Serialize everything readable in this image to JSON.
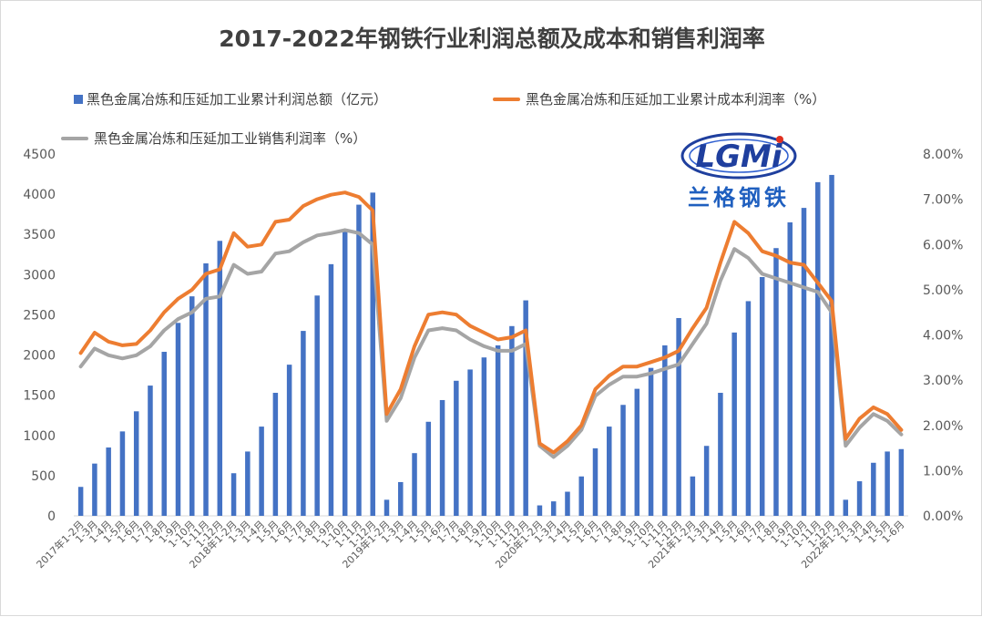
{
  "chart_data": {
    "type": "bar+line",
    "title": "2017-2022年钢铁行业利润总额及成本和销售利润率",
    "categories": [
      "2017年1-2月",
      "1-3月",
      "1-4月",
      "1-5月",
      "1-6月",
      "1-7月",
      "1-8月",
      "1-9月",
      "1-10月",
      "1-11月",
      "1-12月",
      "2018年1-2月",
      "1-3月",
      "1-4月",
      "1-5月",
      "1-6月",
      "1-7月",
      "1-8月",
      "1-9月",
      "1-10月",
      "1-11月",
      "1-12月",
      "2019年1-2月",
      "1-3月",
      "1-4月",
      "1-5月",
      "1-6月",
      "1-7月",
      "1-8月",
      "1-9月",
      "1-10月",
      "1-11月",
      "1-12月",
      "2020年1-2月",
      "1-3月",
      "1-4月",
      "1-5月",
      "1-6月",
      "1-7月",
      "1-8月",
      "1-9月",
      "1-10月",
      "1-11月",
      "1-12月",
      "2021年1-2月",
      "1-3月",
      "1-4月",
      "1-5月",
      "1-6月",
      "1-7月",
      "1-8月",
      "1-9月",
      "1-10月",
      "1-11月",
      "1-12月",
      "2022年1-2月",
      "1-3月",
      "1-4月",
      "1-5月",
      "1-6月"
    ],
    "series": [
      {
        "name": "黑色金属冶炼和压延加工业累计利润总额（亿元）",
        "kind": "bar",
        "axis": "left",
        "color": "#4472c4",
        "values": [
          360,
          650,
          850,
          1050,
          1300,
          1620,
          2040,
          2400,
          2730,
          3140,
          3420,
          530,
          800,
          1110,
          1530,
          1880,
          2300,
          2740,
          3130,
          3550,
          3870,
          4020,
          200,
          420,
          780,
          1170,
          1440,
          1680,
          1820,
          1970,
          2120,
          2360,
          2680,
          130,
          180,
          300,
          490,
          840,
          1110,
          1380,
          1580,
          1840,
          2120,
          2460,
          490,
          870,
          1530,
          2280,
          2670,
          2970,
          3330,
          3650,
          3830,
          4150,
          4240,
          200,
          430,
          660,
          800,
          830
        ]
      },
      {
        "name": "黑色金属冶炼和压延加工业累计成本利润率（%）",
        "kind": "line",
        "axis": "right",
        "color": "#ed7d31",
        "values": [
          3.6,
          4.05,
          3.85,
          3.77,
          3.8,
          4.1,
          4.5,
          4.8,
          5.0,
          5.35,
          5.45,
          6.25,
          5.95,
          6.0,
          6.5,
          6.55,
          6.85,
          7.0,
          7.1,
          7.15,
          7.05,
          6.75,
          2.25,
          2.8,
          3.75,
          4.45,
          4.5,
          4.45,
          4.2,
          4.05,
          3.9,
          3.95,
          4.1,
          1.6,
          1.4,
          1.65,
          2.0,
          2.8,
          3.1,
          3.3,
          3.3,
          3.4,
          3.5,
          3.65,
          4.15,
          4.6,
          5.6,
          6.5,
          6.25,
          5.85,
          5.75,
          5.6,
          5.55,
          5.15,
          4.75,
          1.7,
          2.15,
          2.4,
          2.25,
          1.9
        ]
      },
      {
        "name": "黑色金属冶炼和压延加工业销售利润率（%）",
        "kind": "line",
        "axis": "right",
        "color": "#a5a5a5",
        "values": [
          3.3,
          3.7,
          3.55,
          3.48,
          3.55,
          3.75,
          4.1,
          4.35,
          4.5,
          4.8,
          4.85,
          5.55,
          5.35,
          5.4,
          5.8,
          5.85,
          6.05,
          6.2,
          6.25,
          6.32,
          6.25,
          6.0,
          2.1,
          2.6,
          3.5,
          4.1,
          4.15,
          4.1,
          3.9,
          3.75,
          3.65,
          3.65,
          3.8,
          1.55,
          1.3,
          1.55,
          1.9,
          2.65,
          2.9,
          3.08,
          3.08,
          3.15,
          3.25,
          3.35,
          3.8,
          4.25,
          5.2,
          5.9,
          5.7,
          5.35,
          5.25,
          5.15,
          5.05,
          4.95,
          4.5,
          1.55,
          1.95,
          2.25,
          2.1,
          1.8
        ]
      }
    ],
    "y_left": {
      "min": 0,
      "max": 4500,
      "ticks": [
        "0",
        "500",
        "1000",
        "1500",
        "2000",
        "2500",
        "3000",
        "3500",
        "4000",
        "4500"
      ]
    },
    "y_right": {
      "min": 0,
      "max": 8,
      "ticks": [
        "0.00%",
        "1.00%",
        "2.00%",
        "3.00%",
        "4.00%",
        "5.00%",
        "6.00%",
        "7.00%",
        "8.00%"
      ]
    },
    "grid": false,
    "legend": "top"
  },
  "logo": {
    "text": "LGMi",
    "caption": "兰格钢铁"
  }
}
